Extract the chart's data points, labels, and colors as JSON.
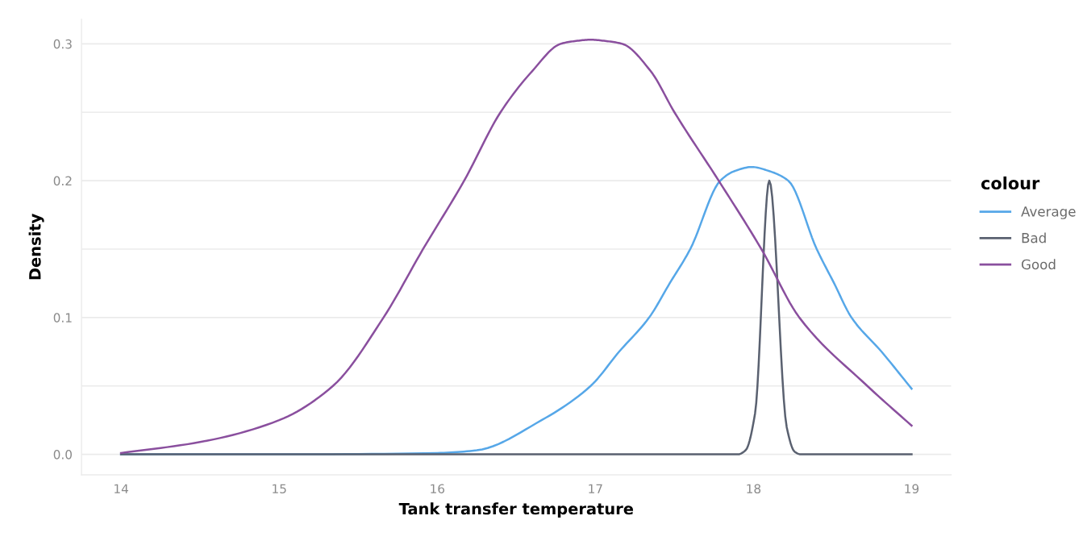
{
  "chart_data": {
    "type": "line",
    "xlabel": "Tank transfer temperature",
    "ylabel": "Density",
    "legend_title": "colour",
    "legend": "right",
    "grid": "y",
    "xlim": [
      13.75,
      19.25
    ],
    "xticks": [
      14,
      15,
      16,
      17,
      18,
      19
    ],
    "ylim": [
      -0.015,
      0.318
    ],
    "yticks": [
      {
        "value": 0,
        "label": "0.0"
      },
      {
        "value": 0.05,
        "label": null
      },
      {
        "value": 0.1,
        "label": "0.1"
      },
      {
        "value": 0.15,
        "label": null
      },
      {
        "value": 0.2,
        "label": "0.2"
      },
      {
        "value": 0.25,
        "label": null
      },
      {
        "value": 0.3,
        "label": "0.3"
      }
    ],
    "series": [
      {
        "name": "Average",
        "color": "#56a7e8",
        "x": [
          14,
          15,
          16,
          16.25,
          16.66,
          16.97,
          17.15,
          17.34,
          17.47,
          17.6,
          17.79,
          17.88,
          17.99,
          18.1,
          18.22,
          18.4,
          18.51,
          18.62,
          18.81,
          19
        ],
        "values": [
          0,
          0,
          0.001,
          0.003,
          0.025,
          0.05,
          0.075,
          0.1,
          0.125,
          0.15,
          0.2,
          0.207,
          0.21,
          0.207,
          0.2,
          0.15,
          0.125,
          0.1,
          0.075,
          0.048
        ]
      },
      {
        "name": "Bad",
        "color": "#5a6170",
        "x": [
          14,
          17.9,
          17.95,
          18.01,
          18.1,
          18.21,
          18.26,
          18.3,
          19
        ],
        "values": [
          0,
          0,
          0.003,
          0.03,
          0.2,
          0.02,
          0.002,
          0,
          0
        ]
      },
      {
        "name": "Good",
        "color": "#8a4f9e",
        "x": [
          14,
          14.5,
          15,
          15.34,
          15.66,
          15.91,
          16.17,
          16.4,
          16.6,
          16.78,
          16.87,
          16.97,
          17.07,
          17.17,
          17.35,
          17.5,
          17.78,
          18.05,
          18.29,
          18.72,
          19
        ],
        "values": [
          0.001,
          0.009,
          0.025,
          0.05,
          0.1,
          0.15,
          0.2,
          0.25,
          0.28,
          0.3,
          0.302,
          0.303,
          0.302,
          0.3,
          0.28,
          0.25,
          0.2,
          0.15,
          0.1,
          0.05,
          0.021
        ]
      }
    ]
  }
}
